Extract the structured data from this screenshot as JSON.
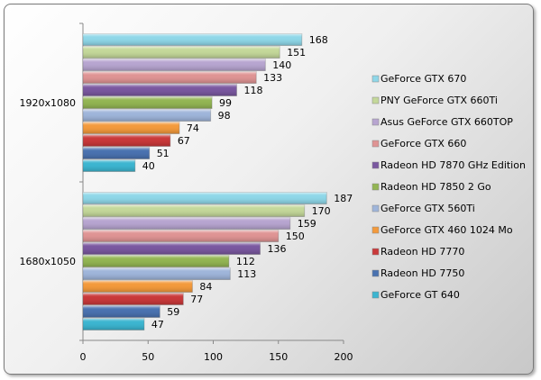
{
  "chart_data": {
    "type": "bar",
    "orientation": "horizontal",
    "title": "",
    "xlabel": "",
    "ylabel": "",
    "xlim": [
      0,
      200
    ],
    "x_ticks": [
      "0",
      "50",
      "100",
      "150",
      "200"
    ],
    "categories": [
      "1920x1080",
      "1680x1050"
    ],
    "legend_position": "right",
    "series": [
      {
        "name": "GeForce GTX 670",
        "color": "#8fd7e8",
        "values": [
          168,
          187
        ]
      },
      {
        "name": "PNY GeForce GTX 660Ti",
        "color": "#c4d89a",
        "values": [
          151,
          170
        ]
      },
      {
        "name": "Asus GeForce GTX 660TOP",
        "color": "#b7a5d0",
        "values": [
          140,
          159
        ]
      },
      {
        "name": "GeForce GTX 660",
        "color": "#df9494",
        "values": [
          133,
          150
        ]
      },
      {
        "name": "Radeon HD 7870 GHz Edition",
        "color": "#7a58a0",
        "values": [
          118,
          136
        ]
      },
      {
        "name": "Radeon HD 7850 2 Go",
        "color": "#93b553",
        "values": [
          99,
          112
        ]
      },
      {
        "name": "GeForce GTX 560Ti",
        "color": "#9fb5da",
        "values": [
          98,
          113
        ]
      },
      {
        "name": "GeForce GTX 460 1024 Mo",
        "color": "#f39a3c",
        "values": [
          74,
          84
        ]
      },
      {
        "name": "Radeon HD 7770",
        "color": "#c9393a",
        "values": [
          67,
          77
        ]
      },
      {
        "name": "Radeon HD 7750",
        "color": "#4a72b0",
        "values": [
          51,
          59
        ]
      },
      {
        "name": "GeForce GT 640",
        "color": "#3cb5d0",
        "values": [
          40,
          47
        ]
      }
    ]
  }
}
